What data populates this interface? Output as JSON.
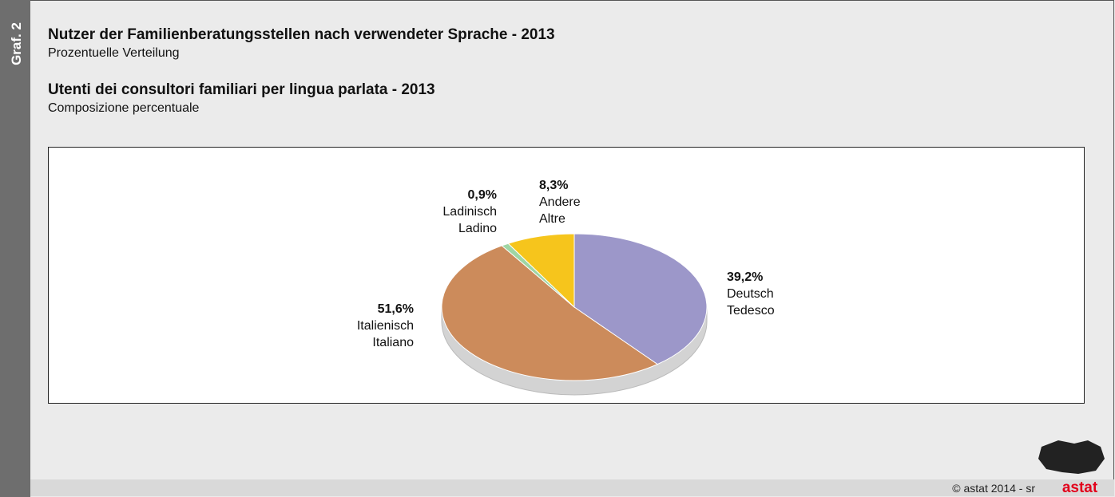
{
  "chart_data": {
    "type": "pie",
    "figure_label": "Graf. 2",
    "title": "Nutzer der Familienberatungsstellen nach verwendeter Sprache - 2013",
    "subtitle": "Prozentuelle Verteilung",
    "title_it": "Utenti dei consultori familiari per lingua parlata - 2013",
    "subtitle_it": "Composizione percentuale",
    "categories": [
      "Deutsch",
      "Italienisch",
      "Ladinisch",
      "Andere"
    ],
    "categories_it": [
      "Tedesco",
      "Italiano",
      "Ladino",
      "Altre"
    ],
    "values": [
      39.2,
      51.6,
      0.9,
      8.3
    ],
    "value_labels": [
      "39,2%",
      "51,6%",
      "0,9%",
      "8,3%"
    ],
    "colors": [
      "#9c97c9",
      "#cc8b5b",
      "#9fd6a4",
      "#f6c51c"
    ],
    "source": "© astat 2014 - sr",
    "logo": "astat"
  }
}
